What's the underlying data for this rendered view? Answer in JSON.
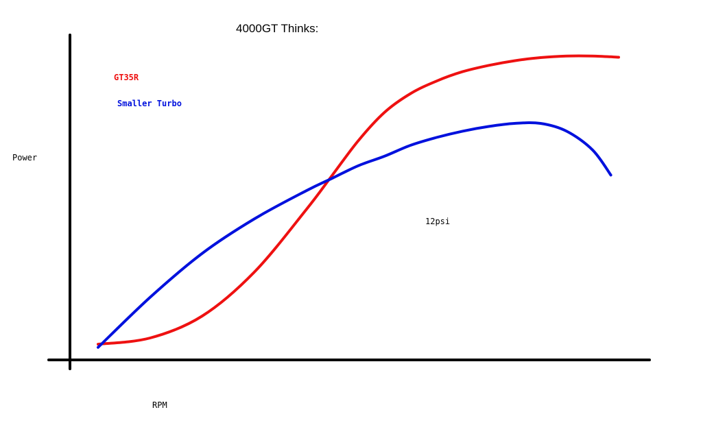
{
  "chart_data": {
    "type": "line",
    "title": "4000GT Thinks:",
    "xlabel": "RPM",
    "ylabel": "Power",
    "annotation": "12psi",
    "grid": false,
    "legend_placement": "top-left",
    "xlim": [
      0,
      100
    ],
    "ylim": [
      0,
      100
    ],
    "series": [
      {
        "name": "GT35R",
        "color": "#ee1111",
        "x": [
          0,
          10,
          20,
          30,
          40,
          45,
          50,
          55,
          60,
          65,
          70,
          75,
          80,
          85,
          90,
          95,
          100
        ],
        "y": [
          5,
          7,
          14,
          28,
          48,
          59,
          70,
          79,
          85,
          89,
          92,
          94,
          95.5,
          96.5,
          97,
          97,
          96.6
        ]
      },
      {
        "name": "Smaller Turbo",
        "color": "#0011dd",
        "x": [
          0,
          10,
          20,
          30,
          40,
          45,
          50,
          55,
          60,
          65,
          70,
          75,
          80,
          85,
          90,
          95,
          98.5
        ],
        "y": [
          4,
          20,
          34,
          45,
          54,
          58,
          62,
          65,
          68.5,
          71,
          73,
          74.5,
          75.5,
          75.5,
          73,
          67,
          59
        ]
      }
    ]
  },
  "colors": {
    "axis": "#000000",
    "series_1": "#ee1111",
    "series_2": "#0011dd"
  }
}
